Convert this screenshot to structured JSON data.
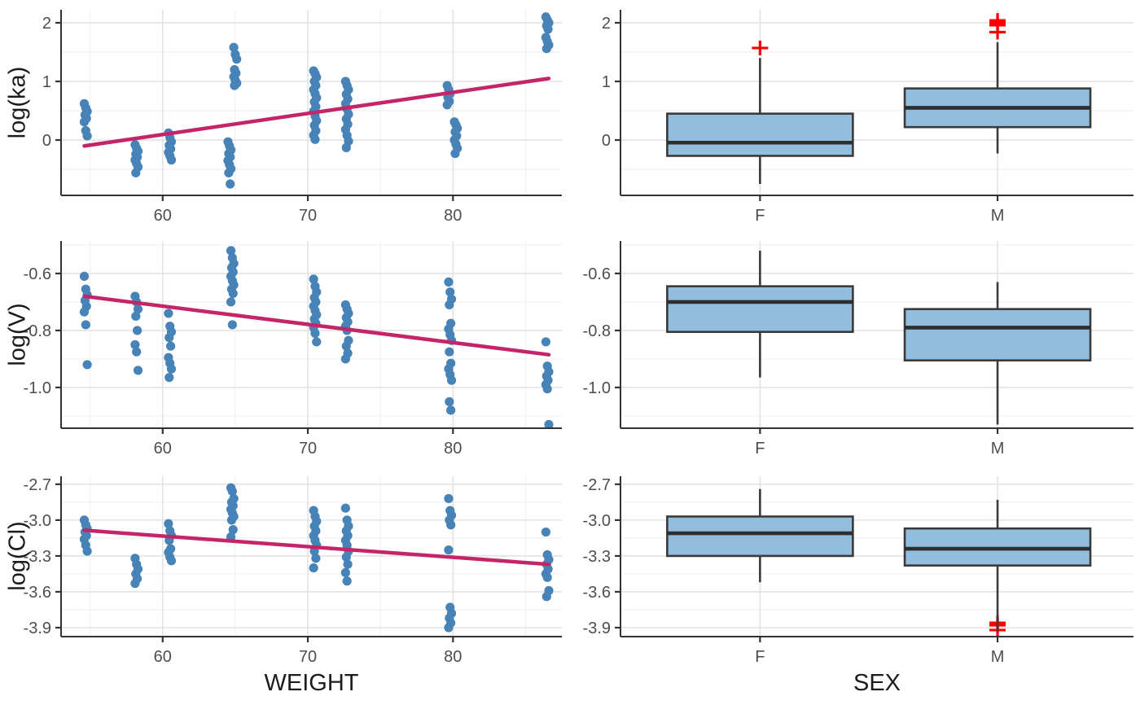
{
  "palette": {
    "point": "#4783B6",
    "trend_line": "#C32568",
    "box_fill": "#93BDDD",
    "box_stroke": "#3A3A3A",
    "median": "#2E2E2E",
    "outlier": "#FB0000",
    "grid_major": "#E3E3E3",
    "grid_minor": "#F1F1F1",
    "axis": "#333333",
    "tick_label": "#4E4E4E",
    "axis_title": "#1C1C1C",
    "panel_bg": "#FFFFFF"
  },
  "chart_data": {
    "panels": [
      {
        "id": "ka_weight",
        "kind": "scatter",
        "row": 0,
        "ylabel": "log(ka)",
        "xlabel": "WEIGHT",
        "xlim": [
          53,
          87.5
        ],
        "ylim": [
          -0.944,
          2.222
        ],
        "xticks": [
          60,
          70,
          80
        ],
        "xticklabels": [
          "60",
          "70",
          "80"
        ],
        "xminor": [
          55,
          65,
          75,
          85
        ],
        "yticks": [
          0,
          1,
          2
        ],
        "yticklabels": [
          "0",
          "1",
          "2"
        ],
        "yminor": [
          -0.5,
          0.5,
          1.5
        ],
        "clusters": [
          {
            "x": 54.7,
            "y": [
              0.62,
              0.55,
              0.49,
              0.43,
              0.37,
              0.31,
              0.16,
              0.07
            ]
          },
          {
            "x": 58.2,
            "y": [
              -0.08,
              -0.14,
              -0.19,
              -0.24,
              -0.29,
              -0.34,
              -0.4,
              -0.46,
              -0.56
            ]
          },
          {
            "x": 60.5,
            "y": [
              0.12,
              0.04,
              -0.03,
              -0.09,
              -0.15,
              -0.21,
              -0.27,
              -0.34
            ]
          },
          {
            "x": 64.6,
            "y": [
              -0.03,
              -0.1,
              -0.17,
              -0.23,
              -0.29,
              -0.35,
              -0.42,
              -0.49,
              -0.56,
              -0.75
            ]
          },
          {
            "x": 65.0,
            "y": [
              1.58,
              1.46,
              1.38,
              1.2,
              1.14,
              1.08,
              1.02,
              0.97,
              0.93
            ]
          },
          {
            "x": 70.5,
            "y": [
              1.18,
              1.13,
              1.07,
              1.0,
              0.93,
              0.86,
              0.79,
              0.72,
              0.65,
              0.57,
              0.49,
              0.41,
              0.33,
              0.25,
              0.16,
              0.08,
              0.01
            ]
          },
          {
            "x": 72.7,
            "y": [
              1.0,
              0.93,
              0.86,
              0.78,
              0.7,
              0.62,
              0.53,
              0.44,
              0.36,
              0.27,
              0.18,
              0.08,
              -0.02,
              -0.13
            ]
          },
          {
            "x": 79.7,
            "y": [
              0.93,
              0.86,
              0.79,
              0.73,
              0.66,
              0.6
            ]
          },
          {
            "x": 80.2,
            "y": [
              0.31,
              0.26,
              0.2,
              0.14,
              0.07,
              0.0,
              -0.07,
              -0.14,
              -0.23
            ]
          },
          {
            "x": 86.5,
            "y": [
              2.1,
              2.05,
              2.0,
              1.95,
              1.89,
              1.75,
              1.68,
              1.62,
              1.56
            ]
          }
        ],
        "trend": {
          "x": [
            54.6,
            86.6
          ],
          "y": [
            -0.1,
            1.05
          ]
        }
      },
      {
        "id": "ka_sex",
        "kind": "box",
        "row": 0,
        "xlabel": "SEX",
        "ylim": [
          -0.944,
          2.222
        ],
        "yticks": [
          0,
          1,
          2
        ],
        "yticklabels": [
          "0",
          "1",
          "2"
        ],
        "yminor": [
          -0.5,
          0.5,
          1.5
        ],
        "categories": [
          "F",
          "M"
        ],
        "centers": [
          0.272,
          0.735
        ],
        "boxes": [
          {
            "label": "F",
            "whisker_low": -0.75,
            "q1": -0.27,
            "median": -0.045,
            "q3": 0.45,
            "whisker_high": 1.4,
            "outliers": [
              1.57
            ]
          },
          {
            "label": "M",
            "whisker_low": -0.23,
            "q1": 0.22,
            "median": 0.55,
            "q3": 0.88,
            "whisker_high": 1.67,
            "outliers": [
              2.04,
              2.0,
              1.96,
              1.84
            ]
          }
        ]
      },
      {
        "id": "v_weight",
        "kind": "scatter",
        "row": 1,
        "ylabel": "log(V)",
        "xlabel": "WEIGHT",
        "xlim": [
          53,
          87.5
        ],
        "ylim": [
          -1.143,
          -0.486
        ],
        "xticks": [
          60,
          70,
          80
        ],
        "xticklabels": [
          "60",
          "70",
          "80"
        ],
        "xminor": [
          55,
          65,
          75,
          85
        ],
        "yticks": [
          -0.6,
          -0.8,
          -1.0
        ],
        "yticklabels": [
          "-0.6",
          "-0.8",
          "-1.0"
        ],
        "yminor": [
          -0.5,
          -0.7,
          -0.9,
          -1.1
        ],
        "clusters": [
          {
            "x": 54.7,
            "y": [
              -0.61,
              -0.655,
              -0.675,
              -0.695,
              -0.715,
              -0.735,
              -0.78,
              -0.92
            ]
          },
          {
            "x": 58.2,
            "y": [
              -0.68,
              -0.7,
              -0.725,
              -0.75,
              -0.8,
              -0.85,
              -0.875,
              -0.94
            ]
          },
          {
            "x": 60.5,
            "y": [
              -0.74,
              -0.785,
              -0.805,
              -0.825,
              -0.855,
              -0.895,
              -0.915,
              -0.935,
              -0.965
            ]
          },
          {
            "x": 64.8,
            "y": [
              -0.52,
              -0.545,
              -0.565,
              -0.58,
              -0.595,
              -0.61,
              -0.625,
              -0.64,
              -0.655,
              -0.67,
              -0.7,
              -0.78
            ]
          },
          {
            "x": 70.5,
            "y": [
              -0.62,
              -0.645,
              -0.665,
              -0.685,
              -0.7,
              -0.715,
              -0.73,
              -0.745,
              -0.76,
              -0.775,
              -0.79,
              -0.81,
              -0.84
            ]
          },
          {
            "x": 72.7,
            "y": [
              -0.71,
              -0.725,
              -0.74,
              -0.755,
              -0.77,
              -0.785,
              -0.8,
              -0.835,
              -0.855,
              -0.88,
              -0.9
            ]
          },
          {
            "x": 79.8,
            "y": [
              -0.63,
              -0.665,
              -0.69,
              -0.71,
              -0.775,
              -0.795,
              -0.815,
              -0.835,
              -0.875,
              -0.915,
              -0.935,
              -0.955,
              -0.975,
              -1.05,
              -1.08
            ]
          },
          {
            "x": 86.5,
            "y": [
              -0.84,
              -0.925,
              -0.945,
              -0.96,
              -0.975,
              -0.99,
              -1.005,
              -1.13
            ]
          }
        ],
        "trend": {
          "x": [
            54.6,
            86.6
          ],
          "y": [
            -0.68,
            -0.885
          ]
        }
      },
      {
        "id": "v_sex",
        "kind": "box",
        "row": 1,
        "xlabel": "SEX",
        "ylim": [
          -1.143,
          -0.486
        ],
        "yticks": [
          -0.6,
          -0.8,
          -1.0
        ],
        "yticklabels": [
          "-0.6",
          "-0.8",
          "-1.0"
        ],
        "yminor": [
          -0.5,
          -0.7,
          -0.9,
          -1.1
        ],
        "categories": [
          "F",
          "M"
        ],
        "centers": [
          0.272,
          0.735
        ],
        "boxes": [
          {
            "label": "F",
            "whisker_low": -0.965,
            "q1": -0.805,
            "median": -0.7,
            "q3": -0.645,
            "whisker_high": -0.52,
            "outliers": []
          },
          {
            "label": "M",
            "whisker_low": -1.13,
            "q1": -0.905,
            "median": -0.79,
            "q3": -0.725,
            "whisker_high": -0.63,
            "outliers": []
          }
        ]
      },
      {
        "id": "cl_weight",
        "kind": "scatter",
        "row": 2,
        "ylabel": "log(Cl)",
        "xlabel": "WEIGHT",
        "xlim": [
          53,
          87.5
        ],
        "ylim": [
          -3.975,
          -2.633
        ],
        "xticks": [
          60,
          70,
          80
        ],
        "xticklabels": [
          "60",
          "70",
          "80"
        ],
        "xminor": [
          55,
          65,
          75,
          85
        ],
        "yticks": [
          -2.7,
          -3.0,
          -3.3,
          -3.6,
          -3.9
        ],
        "yticklabels": [
          "-2.7",
          "-3.0",
          "-3.3",
          "-3.6",
          "-3.9"
        ],
        "yminor": [
          -2.85,
          -3.15,
          -3.45,
          -3.75
        ],
        "clusters": [
          {
            "x": 54.7,
            "y": [
              -3.0,
              -3.04,
              -3.07,
              -3.1,
              -3.13,
              -3.16,
              -3.21,
              -3.26
            ]
          },
          {
            "x": 58.2,
            "y": [
              -3.32,
              -3.37,
              -3.41,
              -3.45,
              -3.49,
              -3.53
            ]
          },
          {
            "x": 60.5,
            "y": [
              -3.03,
              -3.09,
              -3.13,
              -3.17,
              -3.24,
              -3.27,
              -3.31,
              -3.34
            ]
          },
          {
            "x": 64.8,
            "y": [
              -2.73,
              -2.76,
              -2.82,
              -2.85,
              -2.88,
              -2.91,
              -2.94,
              -2.97,
              -3.0,
              -3.08,
              -3.14
            ]
          },
          {
            "x": 70.5,
            "y": [
              -2.92,
              -2.97,
              -3.01,
              -3.05,
              -3.09,
              -3.13,
              -3.17,
              -3.21,
              -3.26,
              -3.32,
              -3.4
            ]
          },
          {
            "x": 72.7,
            "y": [
              -2.9,
              -3.0,
              -3.05,
              -3.09,
              -3.13,
              -3.17,
              -3.21,
              -3.26,
              -3.31,
              -3.37,
              -3.44,
              -3.51
            ]
          },
          {
            "x": 79.8,
            "y": [
              -2.82,
              -2.92,
              -2.96,
              -3.0,
              -3.04,
              -3.25,
              -3.73,
              -3.78,
              -3.82,
              -3.86,
              -3.9
            ]
          },
          {
            "x": 86.5,
            "y": [
              -3.1,
              -3.29,
              -3.33,
              -3.37,
              -3.41,
              -3.45,
              -3.48,
              -3.59,
              -3.64
            ]
          }
        ],
        "trend": {
          "x": [
            54.6,
            86.6
          ],
          "y": [
            -3.085,
            -3.37
          ]
        }
      },
      {
        "id": "cl_sex",
        "kind": "box",
        "row": 2,
        "xlabel": "SEX",
        "ylim": [
          -3.975,
          -2.633
        ],
        "yticks": [
          -2.7,
          -3.0,
          -3.3,
          -3.6,
          -3.9
        ],
        "yticklabels": [
          "-2.7",
          "-3.0",
          "-3.3",
          "-3.6",
          "-3.9"
        ],
        "yminor": [
          -2.85,
          -3.15,
          -3.45,
          -3.75
        ],
        "categories": [
          "F",
          "M"
        ],
        "centers": [
          0.272,
          0.735
        ],
        "boxes": [
          {
            "label": "F",
            "whisker_low": -3.52,
            "q1": -3.3,
            "median": -3.11,
            "q3": -2.97,
            "whisker_high": -2.74,
            "outliers": []
          },
          {
            "label": "M",
            "whisker_low": -3.93,
            "q1": -3.38,
            "median": -3.24,
            "q3": -3.07,
            "whisker_high": -2.83,
            "outliers": [
              -3.86,
              -3.88,
              -3.92
            ]
          }
        ]
      }
    ]
  }
}
